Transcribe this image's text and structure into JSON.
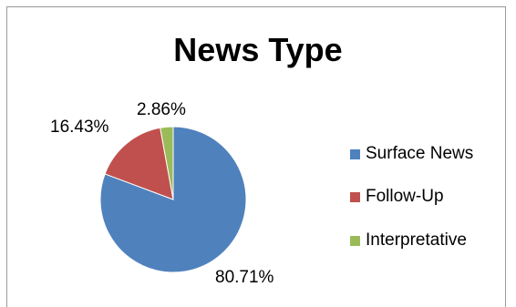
{
  "chart_data": {
    "type": "pie",
    "title": "News Type",
    "categories": [
      "Surface News",
      "Follow-Up",
      "Interpretative"
    ],
    "values": [
      80.71,
      16.43,
      2.86
    ],
    "data_labels": [
      "80.71%",
      "16.43%",
      "2.86%"
    ],
    "colors": [
      "#4f81bd",
      "#c0504d",
      "#9bbb59"
    ],
    "legend_position": "right",
    "start_angle": "12 o'clock, clockwise"
  }
}
